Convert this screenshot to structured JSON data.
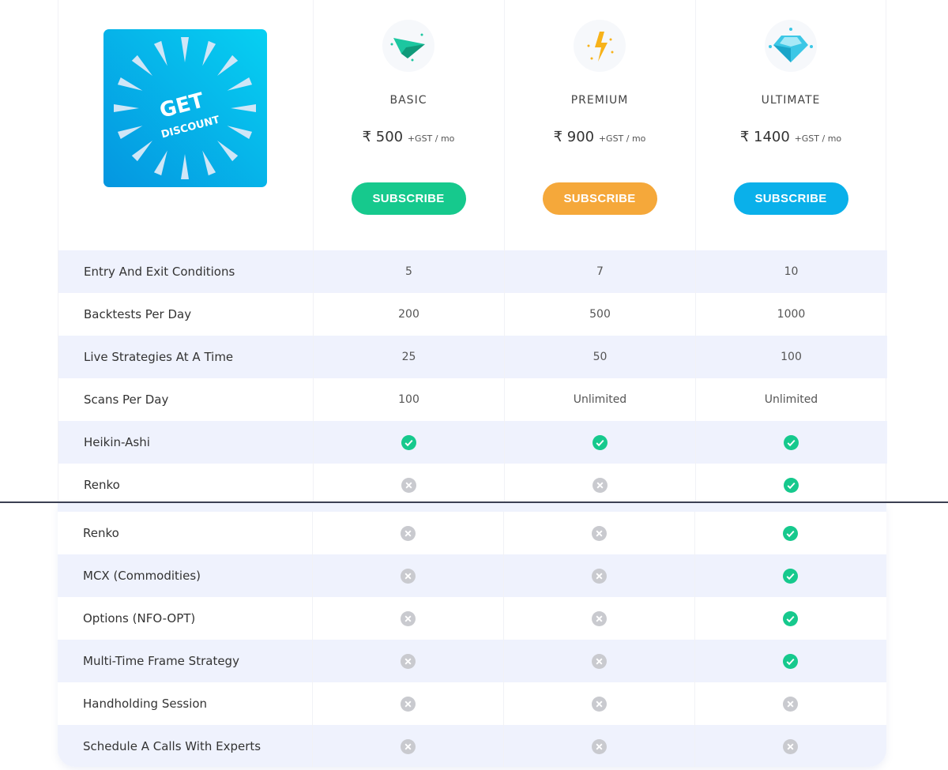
{
  "promo": {
    "line1": "GET",
    "line2": "DISCOUNT"
  },
  "plans": [
    {
      "name": "BASIC",
      "price": "₹ 500",
      "suffix": "+GST / mo",
      "button": "SUBSCRIBE",
      "color": "#16c98d",
      "icon": "paper-plane-icon"
    },
    {
      "name": "PREMIUM",
      "price": "₹ 900",
      "suffix": "+GST / mo",
      "button": "SUBSCRIBE",
      "color": "#f5a83a",
      "icon": "lightning-icon"
    },
    {
      "name": "ULTIMATE",
      "price": "₹ 1400",
      "suffix": "+GST / mo",
      "button": "SUBSCRIBE",
      "color": "#0ab0ea",
      "icon": "diamond-icon"
    }
  ],
  "colors": {
    "check": "#16c98d",
    "cross": "#c9cacf",
    "row_alt": "#eff2fd"
  },
  "features_top": [
    {
      "label": "Entry And Exit Conditions",
      "values": [
        "5",
        "7",
        "10"
      ]
    },
    {
      "label": "Backtests Per Day",
      "values": [
        "200",
        "500",
        "1000"
      ]
    },
    {
      "label": "Live Strategies At A Time",
      "values": [
        "25",
        "50",
        "100"
      ]
    },
    {
      "label": "Scans Per Day",
      "values": [
        "100",
        "Unlimited",
        "Unlimited"
      ]
    },
    {
      "label": "Heikin-Ashi",
      "values": [
        true,
        true,
        true
      ]
    },
    {
      "label": "Renko",
      "values": [
        false,
        false,
        true
      ]
    }
  ],
  "features_bottom": [
    {
      "label": "Renko",
      "values": [
        false,
        false,
        true
      ]
    },
    {
      "label": "MCX (Commodities)",
      "values": [
        false,
        false,
        true
      ]
    },
    {
      "label": "Options (NFO-OPT)",
      "values": [
        false,
        false,
        true
      ]
    },
    {
      "label": "Multi-Time Frame Strategy",
      "values": [
        false,
        false,
        true
      ]
    },
    {
      "label": "Handholding Session",
      "values": [
        false,
        false,
        false
      ]
    },
    {
      "label": "Schedule A Calls With Experts",
      "values": [
        false,
        false,
        false
      ]
    }
  ]
}
